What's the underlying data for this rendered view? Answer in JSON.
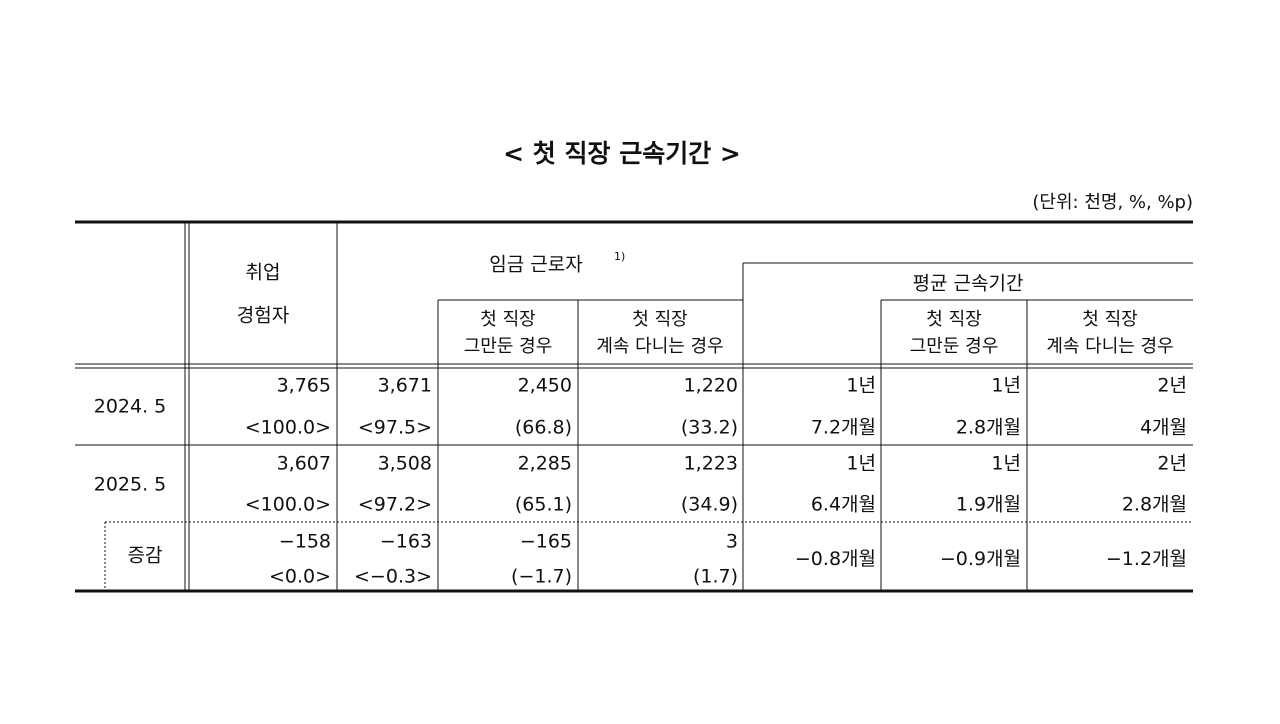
{
  "title": "< 첫 직장 근속기간 >",
  "unit": "(단위: 천명, %, %p)",
  "header": {
    "employed": [
      "취업",
      "경험자"
    ],
    "wage_workers": "임금 근로자",
    "footnote_mark": "1)",
    "quit_first_job": [
      "첫 직장",
      "그만둔 경우"
    ],
    "stay_first_job": [
      "첫 직장",
      "계속 다니는 경우"
    ],
    "avg_tenure": "평균 근속기간",
    "avg_quit": [
      "첫 직장",
      "그만둔 경우"
    ],
    "avg_stay": [
      "첫 직장",
      "계속 다니는 경우"
    ]
  },
  "table": {
    "rows": [
      {
        "label": "2024. 5",
        "cells": [
          [
            "3,765",
            "<100.0>"
          ],
          [
            "3,671",
            "<97.5>"
          ],
          [
            "2,450",
            "(66.8)"
          ],
          [
            "1,220",
            "(33.2)"
          ],
          [
            "1년",
            "7.2개월"
          ],
          [
            "1년",
            "2.8개월"
          ],
          [
            "2년",
            "4개월"
          ]
        ]
      },
      {
        "label": "2025. 5",
        "cells": [
          [
            "3,607",
            "<100.0>"
          ],
          [
            "3,508",
            "<97.2>"
          ],
          [
            "2,285",
            "(65.1)"
          ],
          [
            "1,223",
            "(34.9)"
          ],
          [
            "1년",
            "6.4개월"
          ],
          [
            "1년",
            "1.9개월"
          ],
          [
            "2년",
            "2.8개월"
          ]
        ]
      },
      {
        "label": "증감",
        "cells": [
          [
            "−158",
            "<0.0>"
          ],
          [
            "−163",
            "<−0.3>"
          ],
          [
            "−165",
            "(−1.7)"
          ],
          [
            "3",
            "(1.7)"
          ],
          [
            "−0.8개월"
          ],
          [
            "−0.9개월"
          ],
          [
            "−1.2개월"
          ]
        ]
      }
    ]
  }
}
